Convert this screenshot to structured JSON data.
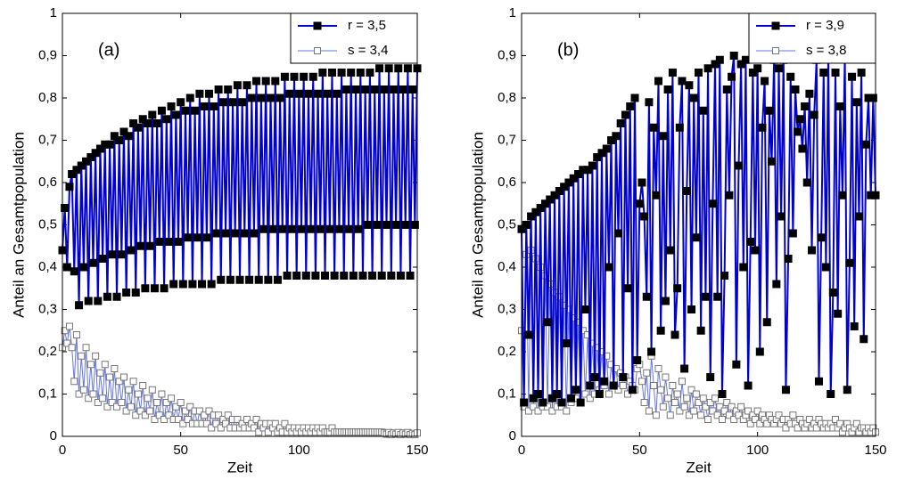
{
  "chart_data": [
    {
      "type": "line",
      "label": "(a)",
      "xlabel": "Zeit",
      "ylabel": "Anteil an Gesamtpopulation",
      "xlim": [
        0,
        150
      ],
      "ylim": [
        0,
        1
      ],
      "xticks": [
        0,
        50,
        100,
        150
      ],
      "yticks": [
        0,
        {
          "value": 0.1,
          "label": "0,1"
        },
        {
          "value": 0.2,
          "label": "0,2"
        },
        {
          "value": 0.3,
          "label": "0,3"
        },
        {
          "value": 0.4,
          "label": "0,4"
        },
        {
          "value": 0.5,
          "label": "0,5"
        },
        {
          "value": 0.6,
          "label": "0,6"
        },
        {
          "value": 0.7,
          "label": "0,7"
        },
        {
          "value": 0.8,
          "label": "0,8"
        },
        {
          "value": 0.9,
          "label": "0,9"
        },
        1
      ],
      "legend": "upper right",
      "x": [
        0,
        1,
        2,
        3,
        4,
        5,
        6,
        7,
        8,
        9,
        10,
        11,
        12,
        13,
        14,
        15,
        16,
        17,
        18,
        19,
        20,
        21,
        22,
        23,
        24,
        25,
        26,
        27,
        28,
        29,
        30,
        31,
        32,
        33,
        34,
        35,
        36,
        37,
        38,
        39,
        40,
        41,
        42,
        43,
        44,
        45,
        46,
        47,
        48,
        49,
        50,
        51,
        52,
        53,
        54,
        55,
        56,
        57,
        58,
        59,
        60,
        61,
        62,
        63,
        64,
        65,
        66,
        67,
        68,
        69,
        70,
        71,
        72,
        73,
        74,
        75,
        76,
        77,
        78,
        79,
        80,
        81,
        82,
        83,
        84,
        85,
        86,
        87,
        88,
        89,
        90,
        91,
        92,
        93,
        94,
        95,
        96,
        97,
        98,
        99,
        100,
        101,
        102,
        103,
        104,
        105,
        106,
        107,
        108,
        109,
        110,
        111,
        112,
        113,
        114,
        115,
        116,
        117,
        118,
        119,
        120,
        121,
        122,
        123,
        124,
        125,
        126,
        127,
        128,
        129,
        130,
        131,
        132,
        133,
        134,
        135,
        136,
        137,
        138,
        139,
        140,
        141,
        142,
        143,
        144,
        145,
        146,
        147,
        148,
        149,
        150
      ],
      "series": [
        {
          "name": "r = 3,5",
          "color": "#0000d0",
          "marker_color": "#000000",
          "values": [
            0.44,
            0.54,
            0.4,
            0.59,
            0.62,
            0.39,
            0.63,
            0.31,
            0.64,
            0.4,
            0.65,
            0.32,
            0.66,
            0.41,
            0.67,
            0.32,
            0.68,
            0.42,
            0.69,
            0.33,
            0.69,
            0.43,
            0.71,
            0.33,
            0.7,
            0.43,
            0.72,
            0.34,
            0.71,
            0.44,
            0.74,
            0.34,
            0.73,
            0.45,
            0.75,
            0.35,
            0.74,
            0.45,
            0.76,
            0.35,
            0.74,
            0.46,
            0.77,
            0.35,
            0.75,
            0.46,
            0.78,
            0.36,
            0.76,
            0.46,
            0.79,
            0.36,
            0.77,
            0.47,
            0.8,
            0.36,
            0.77,
            0.47,
            0.81,
            0.36,
            0.78,
            0.47,
            0.81,
            0.36,
            0.78,
            0.48,
            0.82,
            0.37,
            0.79,
            0.48,
            0.82,
            0.37,
            0.79,
            0.48,
            0.83,
            0.37,
            0.79,
            0.48,
            0.83,
            0.37,
            0.8,
            0.48,
            0.84,
            0.37,
            0.8,
            0.49,
            0.84,
            0.37,
            0.8,
            0.49,
            0.84,
            0.37,
            0.8,
            0.49,
            0.85,
            0.38,
            0.81,
            0.49,
            0.85,
            0.38,
            0.81,
            0.49,
            0.85,
            0.38,
            0.81,
            0.49,
            0.85,
            0.38,
            0.81,
            0.49,
            0.86,
            0.38,
            0.81,
            0.49,
            0.86,
            0.38,
            0.81,
            0.49,
            0.86,
            0.38,
            0.82,
            0.49,
            0.86,
            0.38,
            0.82,
            0.49,
            0.86,
            0.38,
            0.82,
            0.5,
            0.86,
            0.38,
            0.82,
            0.5,
            0.87,
            0.38,
            0.82,
            0.5,
            0.87,
            0.38,
            0.82,
            0.5,
            0.87,
            0.38,
            0.82,
            0.5,
            0.87,
            0.38,
            0.82,
            0.5,
            0.87
          ]
        },
        {
          "name": "s = 3,4",
          "color": "#6677dd",
          "marker_color": "#ffffff",
          "values": [
            0.21,
            0.25,
            0.22,
            0.26,
            0.21,
            0.13,
            0.24,
            0.1,
            0.19,
            0.11,
            0.21,
            0.09,
            0.17,
            0.1,
            0.19,
            0.08,
            0.15,
            0.09,
            0.17,
            0.07,
            0.14,
            0.08,
            0.16,
            0.07,
            0.13,
            0.08,
            0.14,
            0.06,
            0.11,
            0.07,
            0.13,
            0.05,
            0.1,
            0.06,
            0.12,
            0.05,
            0.09,
            0.06,
            0.11,
            0.04,
            0.08,
            0.05,
            0.1,
            0.04,
            0.08,
            0.05,
            0.09,
            0.04,
            0.07,
            0.04,
            0.08,
            0.03,
            0.06,
            0.04,
            0.07,
            0.03,
            0.06,
            0.03,
            0.06,
            0.03,
            0.05,
            0.03,
            0.06,
            0.02,
            0.05,
            0.03,
            0.05,
            0.02,
            0.04,
            0.03,
            0.05,
            0.02,
            0.04,
            0.02,
            0.04,
            0.02,
            0.03,
            0.02,
            0.04,
            0.02,
            0.03,
            0.02,
            0.04,
            0.01,
            0.03,
            0.02,
            0.03,
            0.01,
            0.03,
            0.02,
            0.03,
            0.01,
            0.02,
            0.01,
            0.03,
            0.01,
            0.02,
            0.01,
            0.02,
            0.01,
            0.02,
            0.01,
            0.02,
            0.01,
            0.02,
            0.01,
            0.02,
            0.01,
            0.02,
            0.01,
            0.02,
            0.01,
            0.01,
            0.01,
            0.02,
            0.01,
            0.01,
            0.01,
            0.01,
            0.01,
            0.01,
            0.01,
            0.01,
            0.01,
            0.01,
            0.01,
            0.01,
            0.01,
            0.01,
            0.01,
            0.01,
            0.01,
            0.01,
            0.01,
            0.01,
            0.01,
            0.008,
            0.005,
            0.009,
            0.004,
            0.008,
            0.005,
            0.009,
            0.004,
            0.008,
            0.005,
            0.009,
            0.004,
            0.007,
            0.004,
            0.008
          ]
        }
      ]
    },
    {
      "type": "line",
      "label": "(b)",
      "xlabel": "Zeit",
      "ylabel": "Anteil an Gesamtpopulation",
      "xlim": [
        0,
        150
      ],
      "ylim": [
        0,
        1
      ],
      "xticks": [
        0,
        50,
        100,
        150
      ],
      "yticks": [
        0,
        {
          "value": 0.1,
          "label": "0,1"
        },
        {
          "value": 0.2,
          "label": "0,2"
        },
        {
          "value": 0.3,
          "label": "0,3"
        },
        {
          "value": 0.4,
          "label": "0,4"
        },
        {
          "value": 0.5,
          "label": "0,5"
        },
        {
          "value": 0.6,
          "label": "0,6"
        },
        {
          "value": 0.7,
          "label": "0,7"
        },
        {
          "value": 0.8,
          "label": "0,8"
        },
        {
          "value": 0.9,
          "label": "0,9"
        },
        1
      ],
      "legend": "upper right",
      "x": [
        0,
        1,
        2,
        3,
        4,
        5,
        6,
        7,
        8,
        9,
        10,
        11,
        12,
        13,
        14,
        15,
        16,
        17,
        18,
        19,
        20,
        21,
        22,
        23,
        24,
        25,
        26,
        27,
        28,
        29,
        30,
        31,
        32,
        33,
        34,
        35,
        36,
        37,
        38,
        39,
        40,
        41,
        42,
        43,
        44,
        45,
        46,
        47,
        48,
        49,
        50,
        51,
        52,
        53,
        54,
        55,
        56,
        57,
        58,
        59,
        60,
        61,
        62,
        63,
        64,
        65,
        66,
        67,
        68,
        69,
        70,
        71,
        72,
        73,
        74,
        75,
        76,
        77,
        78,
        79,
        80,
        81,
        82,
        83,
        84,
        85,
        86,
        87,
        88,
        89,
        90,
        91,
        92,
        93,
        94,
        95,
        96,
        97,
        98,
        99,
        100,
        101,
        102,
        103,
        104,
        105,
        106,
        107,
        108,
        109,
        110,
        111,
        112,
        113,
        114,
        115,
        116,
        117,
        118,
        119,
        120,
        121,
        122,
        123,
        124,
        125,
        126,
        127,
        128,
        129,
        130,
        131,
        132,
        133,
        134,
        135,
        136,
        137,
        138,
        139,
        140,
        141,
        142,
        143,
        144,
        145,
        146,
        147,
        148,
        149,
        150
      ],
      "series": [
        {
          "name": "r = 3,9",
          "color": "#0000d0",
          "marker_color": "#000000",
          "values": [
            0.49,
            0.08,
            0.5,
            0.24,
            0.52,
            0.09,
            0.53,
            0.1,
            0.54,
            0.08,
            0.55,
            0.27,
            0.56,
            0.09,
            0.57,
            0.1,
            0.58,
            0.08,
            0.59,
            0.22,
            0.6,
            0.09,
            0.61,
            0.11,
            0.62,
            0.08,
            0.63,
            0.3,
            0.63,
            0.12,
            0.64,
            0.14,
            0.66,
            0.1,
            0.67,
            0.13,
            0.68,
            0.4,
            0.7,
            0.12,
            0.71,
            0.48,
            0.74,
            0.14,
            0.76,
            0.35,
            0.78,
            0.11,
            0.8,
            0.18,
            0.55,
            0.6,
            0.52,
            0.33,
            0.79,
            0.2,
            0.73,
            0.57,
            0.84,
            0.25,
            0.71,
            0.32,
            0.82,
            0.44,
            0.86,
            0.24,
            0.35,
            0.73,
            0.84,
            0.16,
            0.58,
            0.83,
            0.3,
            0.8,
            0.47,
            0.86,
            0.25,
            0.77,
            0.33,
            0.87,
            0.14,
            0.55,
            0.88,
            0.33,
            0.89,
            0.1,
            0.38,
            0.82,
            0.57,
            0.85,
            0.9,
            0.17,
            0.64,
            0.88,
            0.4,
            0.89,
            0.12,
            0.46,
            0.86,
            0.44,
            0.87,
            0.2,
            0.73,
            0.84,
            0.27,
            0.77,
            0.65,
            0.89,
            0.36,
            0.87,
            0.52,
            0.89,
            0.11,
            0.42,
            0.85,
            0.48,
            0.82,
            0.72,
            0.75,
            0.68,
            0.78,
            0.6,
            0.81,
            0.44,
            0.76,
            0.89,
            0.13,
            0.47,
            0.86,
            0.4,
            0.91,
            0.1,
            0.34,
            0.86,
            0.29,
            0.78,
            0.57,
            0.9,
            0.11,
            0.41,
            0.85,
            0.26,
            0.79,
            0.52,
            0.86,
            0.23,
            0.69,
            0.8,
            0.57,
            0.8,
            0.57
          ]
        },
        {
          "name": "s = 3,8",
          "color": "#6677dd",
          "marker_color": "#ffffff",
          "values": [
            0.25,
            0.07,
            0.43,
            0.06,
            0.44,
            0.07,
            0.42,
            0.06,
            0.4,
            0.07,
            0.38,
            0.07,
            0.36,
            0.06,
            0.34,
            0.07,
            0.33,
            0.07,
            0.31,
            0.06,
            0.3,
            0.08,
            0.28,
            0.09,
            0.27,
            0.08,
            0.25,
            0.1,
            0.24,
            0.09,
            0.22,
            0.1,
            0.21,
            0.11,
            0.2,
            0.12,
            0.19,
            0.1,
            0.17,
            0.12,
            0.16,
            0.11,
            0.15,
            0.12,
            0.14,
            0.1,
            0.13,
            0.12,
            0.11,
            0.16,
            0.17,
            0.13,
            0.08,
            0.15,
            0.06,
            0.19,
            0.12,
            0.05,
            0.16,
            0.11,
            0.07,
            0.14,
            0.09,
            0.05,
            0.12,
            0.08,
            0.1,
            0.06,
            0.13,
            0.07,
            0.09,
            0.05,
            0.11,
            0.06,
            0.1,
            0.08,
            0.05,
            0.09,
            0.07,
            0.04,
            0.08,
            0.06,
            0.09,
            0.05,
            0.07,
            0.04,
            0.06,
            0.08,
            0.05,
            0.07,
            0.04,
            0.06,
            0.05,
            0.07,
            0.04,
            0.05,
            0.06,
            0.03,
            0.05,
            0.04,
            0.06,
            0.03,
            0.05,
            0.04,
            0.03,
            0.05,
            0.04,
            0.03,
            0.04,
            0.05,
            0.03,
            0.04,
            0.02,
            0.04,
            0.03,
            0.05,
            0.03,
            0.02,
            0.04,
            0.03,
            0.02,
            0.03,
            0.04,
            0.02,
            0.03,
            0.02,
            0.04,
            0.03,
            0.02,
            0.03,
            0.02,
            0.03,
            0.02,
            0.04,
            0.02,
            0.03,
            0.01,
            0.02,
            0.03,
            0.02,
            0.01,
            0.02,
            0.03,
            0.01,
            0.02,
            0.02,
            0.01,
            0.02,
            0.01,
            0.02,
            0.01
          ]
        }
      ]
    }
  ]
}
